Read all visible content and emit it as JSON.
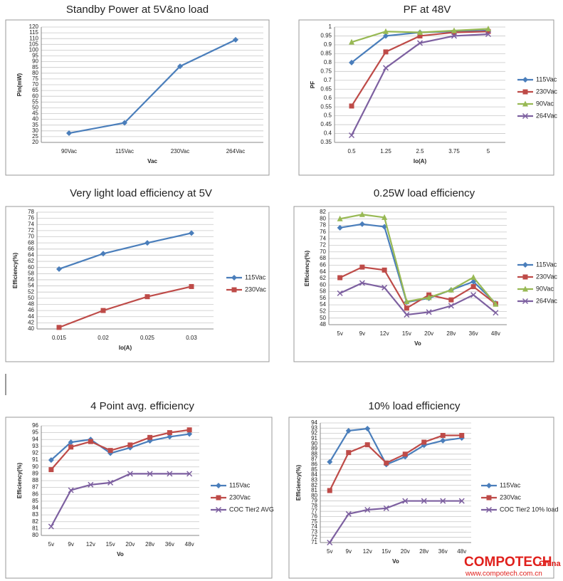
{
  "chart_data": [
    {
      "type": "line",
      "title": "Standby Power at 5V&no load",
      "x_label": "Vac",
      "y_label": "Pin(mW)",
      "categories": [
        "90Vac",
        "115Vac",
        "230Vac",
        "264Vac"
      ],
      "values": [
        28,
        37,
        86,
        109
      ],
      "color": "#4a7ebb",
      "marker": "diamond",
      "ylim": [
        20,
        120
      ],
      "yticks": [
        20,
        25,
        30,
        35,
        40,
        45,
        50,
        55,
        60,
        65,
        70,
        75,
        80,
        85,
        90,
        95,
        100,
        105,
        110,
        115,
        120
      ],
      "grid": true
    },
    {
      "type": "line",
      "title": "PF at 48V",
      "x_label": "Io(A)",
      "y_label": "PF",
      "categories": [
        "0.5",
        "1.25",
        "2.5",
        "3.75",
        "5"
      ],
      "series": [
        {
          "name": "115Vac",
          "color": "#4a7ebb",
          "marker": "diamond",
          "values": [
            0.8,
            0.95,
            0.97,
            0.975,
            0.98
          ]
        },
        {
          "name": "230Vac",
          "color": "#be4b48",
          "marker": "square",
          "values": [
            0.555,
            0.86,
            0.95,
            0.97,
            0.975
          ]
        },
        {
          "name": "90Vac",
          "color": "#98b954",
          "marker": "triangle",
          "values": [
            0.915,
            0.975,
            0.97,
            0.98,
            0.99
          ]
        },
        {
          "name": "264Vac",
          "color": "#7d60a0",
          "marker": "x",
          "values": [
            0.39,
            0.77,
            0.91,
            0.95,
            0.96
          ]
        }
      ],
      "ylim": [
        0.35,
        1
      ],
      "yticks": [
        0.35,
        0.4,
        0.45,
        0.5,
        0.55,
        0.6,
        0.65,
        0.7,
        0.75,
        0.8,
        0.85,
        0.9,
        0.95,
        1
      ],
      "grid": true,
      "legend": "right"
    },
    {
      "type": "line",
      "title": "Very light load efficiency at 5V",
      "x_label": "Io(A)",
      "y_label": "Efficiency(%)",
      "categories": [
        "0.015",
        "0.02",
        "0.025",
        "0.03"
      ],
      "series": [
        {
          "name": "115Vac",
          "color": "#4a7ebb",
          "marker": "diamond",
          "values": [
            59.5,
            64.5,
            68,
            71.2
          ]
        },
        {
          "name": "230Vac",
          "color": "#be4b48",
          "marker": "square",
          "values": [
            40.5,
            46,
            50.5,
            53.8
          ]
        }
      ],
      "ylim": [
        40,
        78
      ],
      "yticks": [
        40,
        42,
        44,
        46,
        48,
        50,
        52,
        54,
        56,
        58,
        60,
        62,
        64,
        66,
        68,
        70,
        72,
        74,
        76,
        78
      ],
      "grid": true,
      "legend": "right"
    },
    {
      "type": "line",
      "title": "0.25W load efficiency",
      "x_label": "Vo",
      "y_label": "Efficiency(%)",
      "categories": [
        "5v",
        "9v",
        "12v",
        "15v",
        "20v",
        "28v",
        "36v",
        "48v"
      ],
      "series": [
        {
          "name": "115Vac",
          "color": "#4a7ebb",
          "marker": "diamond",
          "values": [
            77.3,
            78.4,
            77.6,
            54.8,
            56,
            58.5,
            61,
            54.5
          ]
        },
        {
          "name": "230Vac",
          "color": "#be4b48",
          "marker": "square",
          "values": [
            62.2,
            65.4,
            64.5,
            53,
            57,
            55.5,
            59.5,
            54.3
          ]
        },
        {
          "name": "90Vac",
          "color": "#98b954",
          "marker": "triangle",
          "values": [
            80,
            81.3,
            80.4,
            55,
            56.2,
            58.5,
            62.3,
            54.2
          ]
        },
        {
          "name": "264Vac",
          "color": "#7d60a0",
          "marker": "x",
          "values": [
            57.5,
            60.6,
            59.2,
            51,
            51.8,
            53.7,
            57,
            51.6
          ]
        }
      ],
      "ylim": [
        48,
        82
      ],
      "yticks": [
        48,
        50,
        52,
        54,
        56,
        58,
        60,
        62,
        64,
        66,
        68,
        70,
        72,
        74,
        76,
        78,
        80,
        82
      ],
      "grid": true,
      "legend": "right"
    },
    {
      "type": "line",
      "title": "4 Point avg. efficiency",
      "x_label": "Vo",
      "y_label": "Efficiency(%)",
      "categories": [
        "5v",
        "9v",
        "12v",
        "15v",
        "20v",
        "28v",
        "36v",
        "48v"
      ],
      "series": [
        {
          "name": "115Vac",
          "color": "#4a7ebb",
          "marker": "diamond",
          "values": [
            91,
            93.6,
            94,
            92,
            92.8,
            93.8,
            94.4,
            94.8
          ]
        },
        {
          "name": "230Vac",
          "color": "#be4b48",
          "marker": "square",
          "values": [
            89.6,
            92.9,
            93.7,
            92.4,
            93.2,
            94.3,
            95,
            95.4
          ]
        },
        {
          "name": "COC Tier2 AVG",
          "color": "#7d60a0",
          "marker": "x",
          "values": [
            81.3,
            86.6,
            87.4,
            87.7,
            89,
            89,
            89,
            89
          ]
        }
      ],
      "ylim": [
        80,
        96
      ],
      "yticks": [
        80,
        81,
        82,
        83,
        84,
        85,
        86,
        87,
        88,
        89,
        90,
        91,
        92,
        93,
        94,
        95,
        96
      ],
      "grid": true,
      "legend": "right"
    },
    {
      "type": "line",
      "title": "10% load efficiency",
      "x_label": "Vo",
      "y_label": "Efficiency(%)",
      "categories": [
        "5v",
        "9v",
        "12v",
        "15v",
        "20v",
        "28v",
        "36v",
        "48v"
      ],
      "series": [
        {
          "name": "115Vac",
          "color": "#4a7ebb",
          "marker": "diamond",
          "values": [
            86.5,
            92.5,
            92.9,
            86,
            87.5,
            89.7,
            90.6,
            91.1
          ]
        },
        {
          "name": "230Vac",
          "color": "#be4b48",
          "marker": "square",
          "values": [
            81,
            88.3,
            89.8,
            86.3,
            88,
            90.3,
            91.6,
            91.6
          ]
        },
        {
          "name": "COC Tier2 10% load",
          "color": "#7d60a0",
          "marker": "x",
          "values": [
            71,
            76.5,
            77.3,
            77.6,
            79,
            79,
            79,
            79
          ]
        }
      ],
      "ylim": [
        71,
        94
      ],
      "yticks": [
        71,
        72,
        73,
        74,
        75,
        76,
        77,
        78,
        79,
        80,
        81,
        82,
        83,
        84,
        85,
        86,
        87,
        88,
        89,
        90,
        91,
        92,
        93,
        94
      ],
      "grid": true,
      "legend": "right"
    }
  ],
  "watermark": {
    "brand": "COMPOTECH",
    "suffix": "China",
    "url": "www.compotech.com.cn"
  }
}
